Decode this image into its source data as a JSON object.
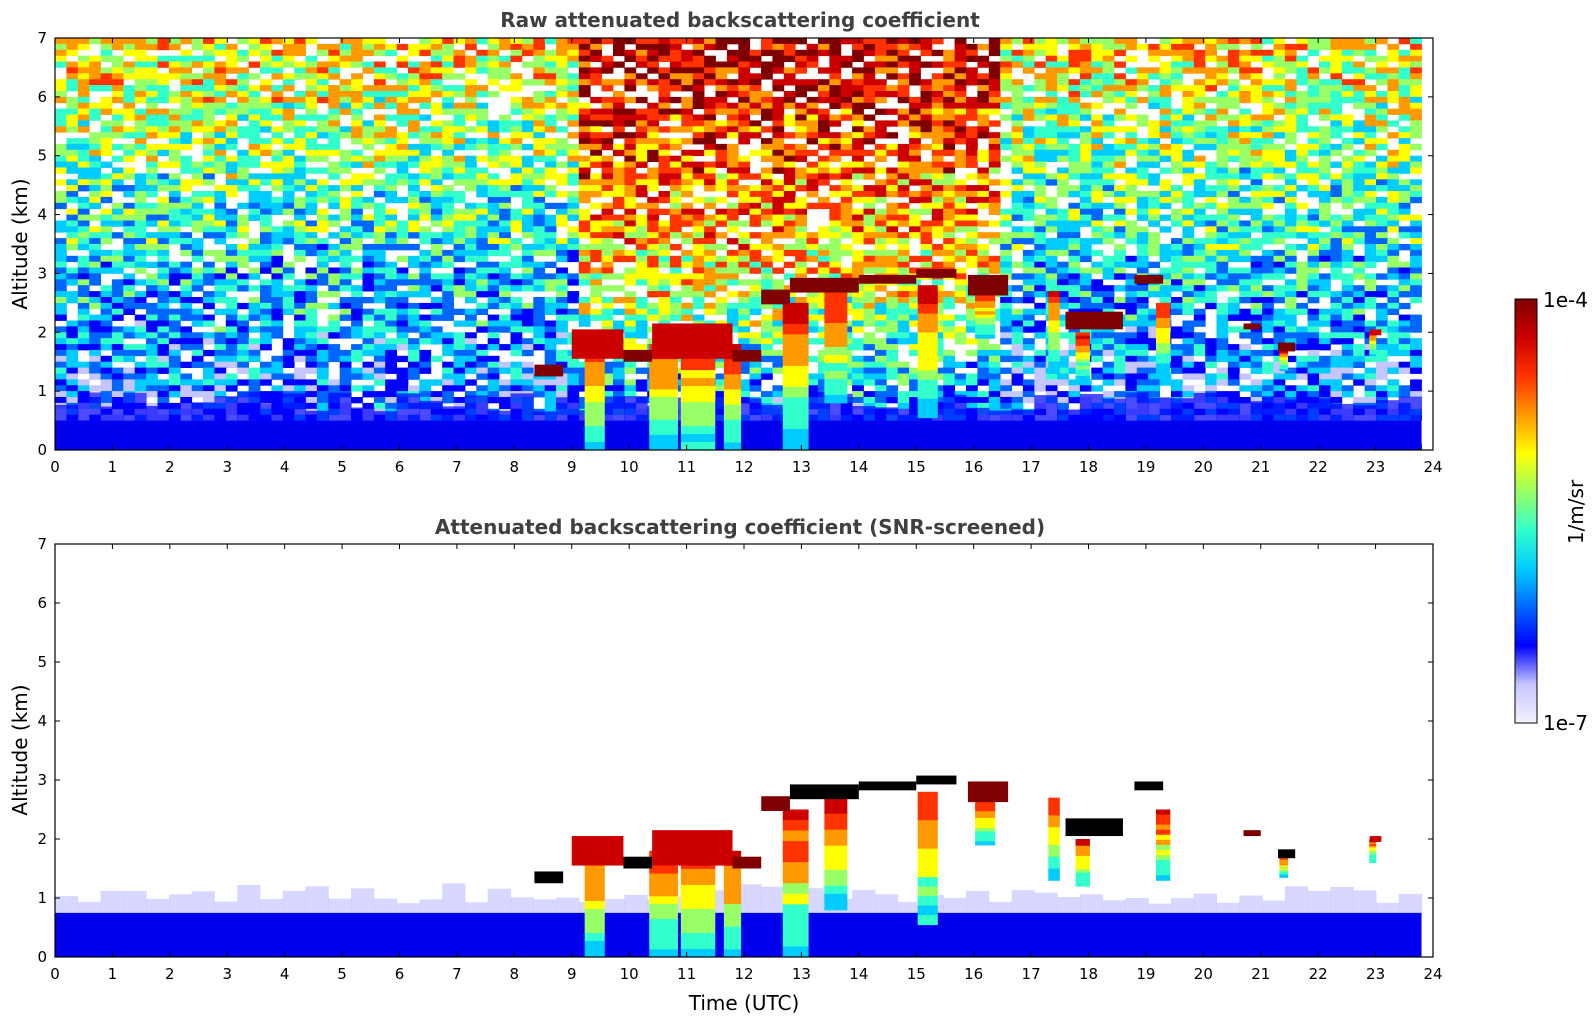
{
  "colors": {
    "ground_layer": "#0000ee",
    "colormap": [
      "#f2f2ff",
      "#c6c6ff",
      "#0000ff",
      "#0066ff",
      "#00ccff",
      "#33ffcc",
      "#99ff66",
      "#ffff00",
      "#ff9900",
      "#ff3300",
      "#cc0000",
      "#7f0000"
    ],
    "black_layer": "#000000"
  },
  "chart_data": [
    {
      "type": "heatmap",
      "title": "Raw attenuated backscattering coefficient",
      "xlabel": "",
      "ylabel": "Altitude (km)",
      "xlim": [
        0,
        24
      ],
      "ylim": [
        0,
        7
      ],
      "xticks": [
        "0",
        "1",
        "2",
        "3",
        "4",
        "5",
        "6",
        "7",
        "8",
        "9",
        "10",
        "11",
        "12",
        "13",
        "14",
        "15",
        "16",
        "17",
        "18",
        "19",
        "20",
        "21",
        "22",
        "23",
        "24"
      ],
      "yticks": [
        "0",
        "1",
        "2",
        "3",
        "4",
        "5",
        "6",
        "7"
      ],
      "data_end_time": 23.8,
      "noise_background": true,
      "cloud_features": [
        {
          "x0": 8.35,
          "x1": 8.85,
          "y": 1.35,
          "depth": 0.2,
          "level": 0.97
        },
        {
          "x0": 9.0,
          "x1": 9.9,
          "y": 1.8,
          "depth": 0.5,
          "level": 0.88
        },
        {
          "x0": 9.9,
          "x1": 10.4,
          "y": 1.6,
          "depth": 0.2,
          "level": 0.97
        },
        {
          "x0": 10.4,
          "x1": 11.8,
          "y": 1.85,
          "depth": 0.6,
          "level": 0.85
        },
        {
          "x0": 11.8,
          "x1": 12.3,
          "y": 1.6,
          "depth": 0.2,
          "level": 0.95
        },
        {
          "x0": 12.3,
          "x1": 12.8,
          "y": 2.6,
          "depth": 0.25,
          "level": 0.93
        },
        {
          "x0": 12.8,
          "x1": 14.0,
          "y": 2.8,
          "depth": 0.25,
          "level": 0.98
        },
        {
          "x0": 14.0,
          "x1": 15.0,
          "y": 2.9,
          "depth": 0.15,
          "level": 0.98
        },
        {
          "x0": 15.0,
          "x1": 15.7,
          "y": 3.0,
          "depth": 0.15,
          "level": 0.99
        },
        {
          "x0": 15.9,
          "x1": 16.6,
          "y": 2.8,
          "depth": 0.35,
          "level": 0.95
        },
        {
          "x0": 17.6,
          "x1": 18.6,
          "y": 2.2,
          "depth": 0.3,
          "level": 0.96
        },
        {
          "x0": 18.8,
          "x1": 19.3,
          "y": 2.9,
          "depth": 0.15,
          "level": 0.99
        },
        {
          "x0": 20.7,
          "x1": 21.0,
          "y": 2.1,
          "depth": 0.1,
          "level": 0.95
        },
        {
          "x0": 21.3,
          "x1": 21.6,
          "y": 1.75,
          "depth": 0.15,
          "level": 0.97
        },
        {
          "x0": 22.9,
          "x1": 23.1,
          "y": 2.0,
          "depth": 0.1,
          "level": 0.9
        }
      ],
      "virga_columns": [
        {
          "x": 9.4,
          "top": 1.9,
          "bottom": 0.0,
          "width": 0.35
        },
        {
          "x": 10.6,
          "top": 1.8,
          "bottom": 0.0,
          "width": 0.5
        },
        {
          "x": 11.2,
          "top": 1.9,
          "bottom": 0.0,
          "width": 0.6
        },
        {
          "x": 11.8,
          "top": 1.8,
          "bottom": 0.0,
          "width": 0.3
        },
        {
          "x": 12.9,
          "top": 2.5,
          "bottom": 0.0,
          "width": 0.45
        },
        {
          "x": 13.6,
          "top": 2.7,
          "bottom": 0.8,
          "width": 0.4
        },
        {
          "x": 15.2,
          "top": 2.8,
          "bottom": 0.55,
          "width": 0.35
        },
        {
          "x": 16.2,
          "top": 2.7,
          "bottom": 1.9,
          "width": 0.35
        },
        {
          "x": 17.4,
          "top": 2.7,
          "bottom": 1.3,
          "width": 0.2
        },
        {
          "x": 17.9,
          "top": 2.0,
          "bottom": 1.2,
          "width": 0.25
        },
        {
          "x": 19.3,
          "top": 2.5,
          "bottom": 1.3,
          "width": 0.25
        },
        {
          "x": 21.4,
          "top": 1.7,
          "bottom": 1.35,
          "width": 0.15
        },
        {
          "x": 22.95,
          "top": 2.0,
          "bottom": 1.6,
          "width": 0.12
        }
      ]
    },
    {
      "type": "heatmap",
      "title": "Attenuated backscattering coefficient (SNR-screened)",
      "xlabel": "Time (UTC)",
      "ylabel": "Altitude (km)",
      "xlim": [
        0,
        24
      ],
      "ylim": [
        0,
        7
      ],
      "xticks": [
        "0",
        "1",
        "2",
        "3",
        "4",
        "5",
        "6",
        "7",
        "8",
        "9",
        "10",
        "11",
        "12",
        "13",
        "14",
        "15",
        "16",
        "17",
        "18",
        "19",
        "20",
        "21",
        "22",
        "23",
        "24"
      ],
      "yticks": [
        "0",
        "1",
        "2",
        "3",
        "4",
        "5",
        "6",
        "7"
      ],
      "data_end_time": 23.8,
      "noise_background": false
    }
  ],
  "colorbar": {
    "label": "1/m/sr",
    "max_label": "1e-4",
    "min_label": "1e-7"
  }
}
